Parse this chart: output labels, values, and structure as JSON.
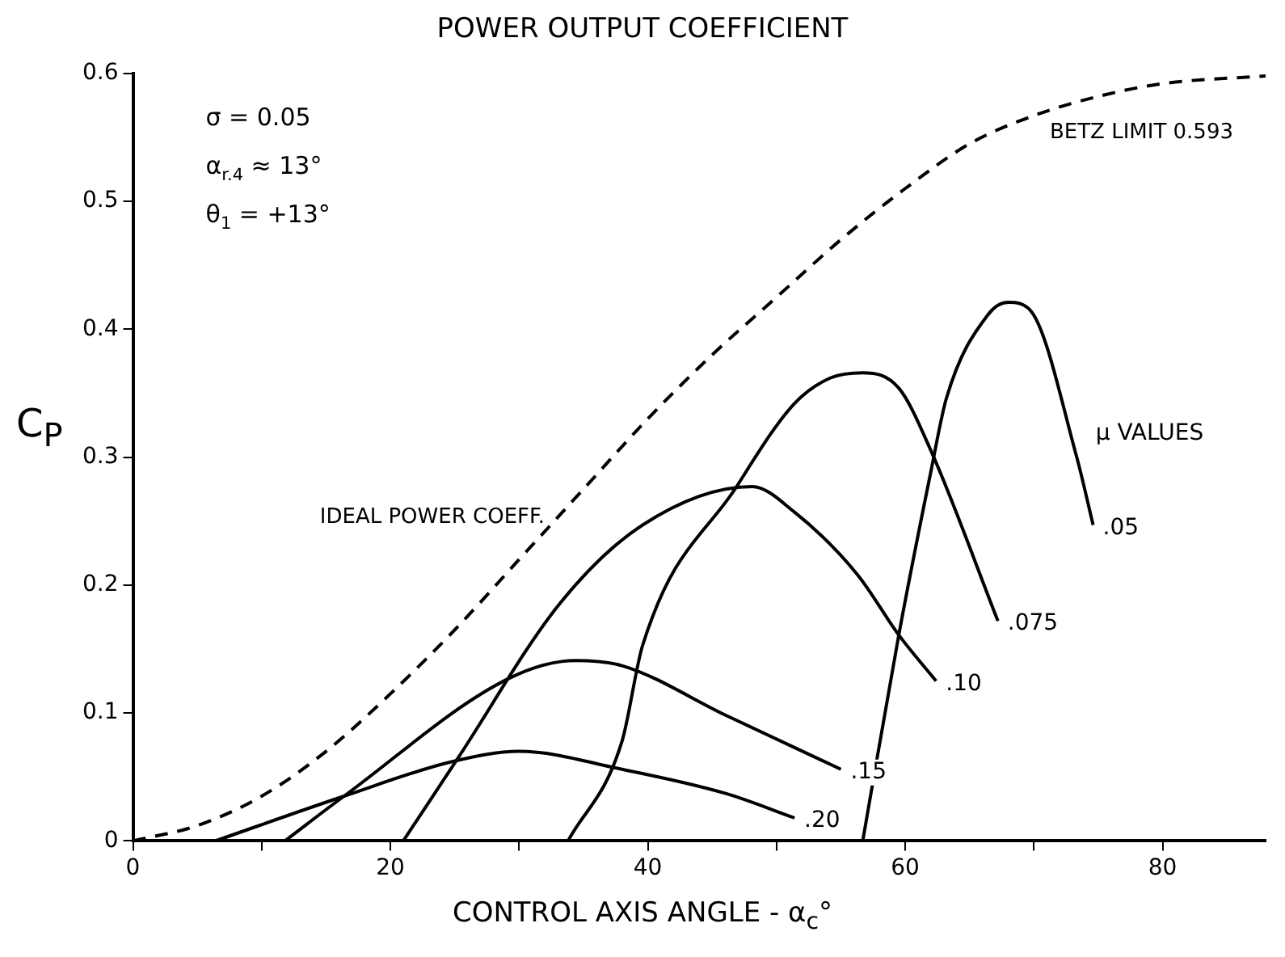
{
  "chart_data": {
    "type": "line",
    "title": "POWER OUTPUT COEFFICIENT",
    "xlabel": "CONTROL AXIS ANGLE - α$_{c}$°",
    "ylabel": "C$_{P}$",
    "xlim": [
      0,
      88
    ],
    "xticks": [
      0,
      {
        "value": 10,
        "label": null
      },
      20,
      {
        "value": 30,
        "label": null
      },
      40,
      {
        "value": 50,
        "label": null
      },
      60,
      {
        "value": 70,
        "label": null
      },
      80
    ],
    "ylim": [
      0,
      0.6
    ],
    "yticks": [
      0,
      0.1,
      0.2,
      0.3,
      0.4,
      0.5,
      0.6
    ],
    "grid": false,
    "legend": false,
    "annotations": [
      "σ = 0.05",
      "α$_{r.4}$ ≈ 13°",
      "θ$_{1}$ = +13°",
      {
        "text": "IDEAL POWER COEFF.",
        "x": 33,
        "y": 0.253
      },
      {
        "text": "BETZ LIMIT 0.593",
        "x": 88,
        "y": 0.598
      },
      "μ VALUES"
    ],
    "series": [
      {
        "color": "#000000",
        "line_style": "dashed",
        "x": [
          0,
          5,
          10,
          15,
          20,
          25,
          30,
          35,
          40,
          45,
          50,
          55,
          60,
          65,
          70,
          75,
          80,
          88
        ],
        "values": [
          0,
          0.012,
          0.035,
          0.07,
          0.115,
          0.165,
          0.22,
          0.275,
          0.33,
          0.38,
          0.425,
          0.47,
          0.51,
          0.545,
          0.567,
          0.582,
          0.592,
          0.598
        ]
      },
      {
        "name": ".05",
        "color": "#000000",
        "x": [
          56.7,
          59.5,
          62,
          63.2,
          66.4,
          68,
          69.7,
          73.3,
          74.6
        ],
        "values": [
          0,
          0.161,
          0.289,
          0.346,
          0.411,
          0.421,
          0.415,
          0.301,
          0.247
        ]
      },
      {
        "name": ".075",
        "color": "#000000",
        "x": [
          33.8,
          38,
          39.6,
          46.9,
          51.4,
          54.2,
          56.7,
          59.5,
          62,
          67.2
        ],
        "values": [
          0,
          0.078,
          0.153,
          0.277,
          0.342,
          0.362,
          0.366,
          0.354,
          0.305,
          0.172
        ]
      },
      {
        "name": ".10",
        "color": "#000000",
        "x": [
          21,
          25.2,
          33.2,
          39.6,
          48.1,
          51.4,
          56.3,
          59.5,
          62.4
        ],
        "values": [
          0,
          0.064,
          0.186,
          0.247,
          0.277,
          0.257,
          0.208,
          0.161,
          0.125
        ]
      },
      {
        "name": ".15",
        "color": "#000000",
        "x": [
          11.8,
          16.4,
          29.2,
          34.4,
          38,
          46.1,
          55
        ],
        "values": [
          0,
          0.035,
          0.127,
          0.141,
          0.137,
          0.098,
          0.056
        ]
      },
      {
        "name": ".20",
        "color": "#000000",
        "x": [
          6.4,
          16.4,
          24.8,
          30,
          38,
          46.1,
          51.4
        ],
        "values": [
          0,
          0.035,
          0.062,
          0.07,
          0.056,
          0.037,
          0.018
        ]
      }
    ]
  }
}
